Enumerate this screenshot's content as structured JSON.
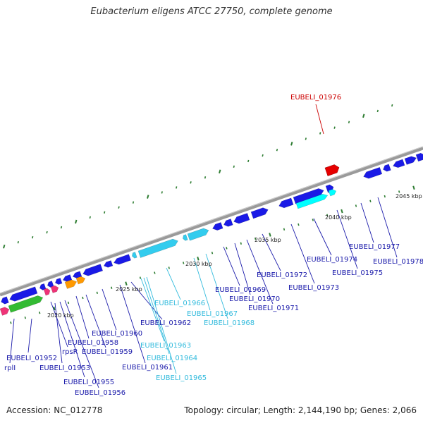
{
  "title": "Eubacterium eligens ATCC 27750, complete genome",
  "footer": {
    "accession": "Accession: NC_012778",
    "summary": "Topology: circular; Length: 2,144,190 bp; Genes: 2,066"
  },
  "colors": {
    "cds": "#1a1ae6",
    "highlight": "#e60000",
    "rna": "#33ccee",
    "trna": "#00ffff",
    "green_gene": "#33bb33",
    "pink_gene": "#ee3377",
    "orange_gene": "#ff9900",
    "ticks": "#2e7d32",
    "backbone": "#888888",
    "label_blue": "#1a1aaa",
    "label_cyan": "#33bbdd",
    "label_red": "#cc0000"
  },
  "kbp_ticks": [
    "2020 kbp",
    "2025 kbp",
    "2030 kbp",
    "2035 kbp",
    "2040 kbp",
    "2045 kbp"
  ],
  "labels": [
    {
      "text": "EUBELI_01976",
      "color": "red"
    },
    {
      "text": "EUBELI_01952",
      "color": "blue"
    },
    {
      "text": "rplI",
      "color": "blue"
    },
    {
      "text": "rpsR",
      "color": "blue"
    },
    {
      "text": "EUBELI_01953",
      "color": "blue"
    },
    {
      "text": "EUBELI_01955",
      "color": "blue"
    },
    {
      "text": "EUBELI_01956",
      "color": "blue"
    },
    {
      "text": "EUBELI_01958",
      "color": "blue"
    },
    {
      "text": "EUBELI_01959",
      "color": "blue"
    },
    {
      "text": "EUBELI_01960",
      "color": "blue"
    },
    {
      "text": "EUBELI_01961",
      "color": "blue"
    },
    {
      "text": "EUBELI_01962",
      "color": "blue"
    },
    {
      "text": "EUBELI_01963",
      "color": "cyan"
    },
    {
      "text": "EUBELI_01964",
      "color": "cyan"
    },
    {
      "text": "EUBELI_01965",
      "color": "cyan"
    },
    {
      "text": "EUBELI_01966",
      "color": "cyan"
    },
    {
      "text": "EUBELI_01967",
      "color": "cyan"
    },
    {
      "text": "EUBELI_01968",
      "color": "cyan"
    },
    {
      "text": "EUBELI_01969",
      "color": "blue"
    },
    {
      "text": "EUBELI_01970",
      "color": "blue"
    },
    {
      "text": "EUBELI_01971",
      "color": "blue"
    },
    {
      "text": "EUBELI_01972",
      "color": "blue"
    },
    {
      "text": "EUBELI_01973",
      "color": "blue"
    },
    {
      "text": "EUBELI_01974",
      "color": "blue"
    },
    {
      "text": "EUBELI_01975",
      "color": "blue"
    },
    {
      "text": "EUBELI_01977",
      "color": "blue"
    },
    {
      "text": "EUBELI_01978",
      "color": "blue"
    }
  ]
}
